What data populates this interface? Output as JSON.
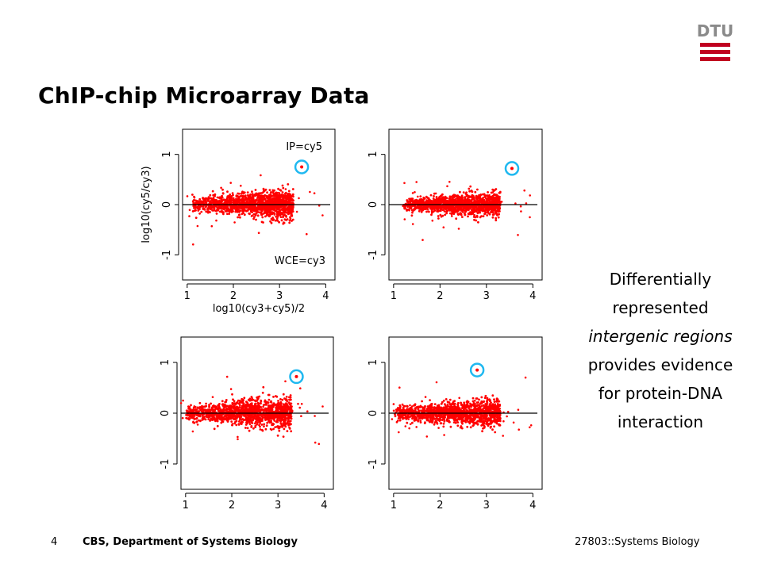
{
  "slide": {
    "title": "ChIP-chip Microarray Data",
    "logo_text": "DTU",
    "side_text": {
      "line1": "Differentially",
      "line2": "represented",
      "line3": "intergenic regions",
      "line4": "provides evidence",
      "line5": "for protein-DNA",
      "line6": "interaction"
    },
    "footer": {
      "page_number": "4",
      "department": "CBS, Department of Systems Biology",
      "course": "27803::Systems Biology"
    }
  },
  "colors": {
    "points": "#ff0000",
    "highlight_circle": "#1fb8f0",
    "logo": "#c00020"
  },
  "chart_data": [
    {
      "type": "scatter",
      "panel": "top-left",
      "xlabel": "log10(cy3+cy5)/2",
      "ylabel": "log10(cy5/cy3)",
      "xlim": [
        0.9,
        4.2
      ],
      "ylim": [
        -1.5,
        1.5
      ],
      "xticks": [
        "1",
        "2",
        "3",
        "4"
      ],
      "yticks": [
        "-1",
        "0",
        "1"
      ],
      "annotations": [
        "IP=cy5",
        "WCE=cy3"
      ],
      "reference_line_y": 0,
      "cloud": {
        "x_range": [
          1.1,
          3.3
        ],
        "spread": 0.12
      },
      "highlighted_point": {
        "x": 3.48,
        "y": 0.75
      }
    },
    {
      "type": "scatter",
      "panel": "top-right",
      "xlim": [
        0.9,
        4.2
      ],
      "ylim": [
        -1.5,
        1.5
      ],
      "xticks": [
        "1",
        "2",
        "3",
        "4"
      ],
      "yticks": [
        "-1",
        "0",
        "1"
      ],
      "reference_line_y": 0,
      "cloud": {
        "x_range": [
          1.2,
          3.3
        ],
        "spread": 0.1
      },
      "highlighted_point": {
        "x": 3.55,
        "y": 0.72
      }
    },
    {
      "type": "scatter",
      "panel": "bottom-left",
      "xlim": [
        0.9,
        4.2
      ],
      "ylim": [
        -1.5,
        1.5
      ],
      "xticks": [
        "1",
        "2",
        "3",
        "4"
      ],
      "yticks": [
        "-1",
        "0",
        "1"
      ],
      "reference_line_y": 0,
      "cloud": {
        "x_range": [
          1.0,
          3.3
        ],
        "spread": 0.13
      },
      "highlighted_point": {
        "x": 3.4,
        "y": 0.72
      }
    },
    {
      "type": "scatter",
      "panel": "bottom-right",
      "xlim": [
        0.9,
        4.2
      ],
      "ylim": [
        -1.5,
        1.5
      ],
      "xticks": [
        "1",
        "2",
        "3",
        "4"
      ],
      "yticks": [
        "-1",
        "0",
        "1"
      ],
      "reference_line_y": 0,
      "cloud": {
        "x_range": [
          1.0,
          3.3
        ],
        "spread": 0.11
      },
      "highlighted_point": {
        "x": 2.8,
        "y": 0.85
      }
    }
  ]
}
